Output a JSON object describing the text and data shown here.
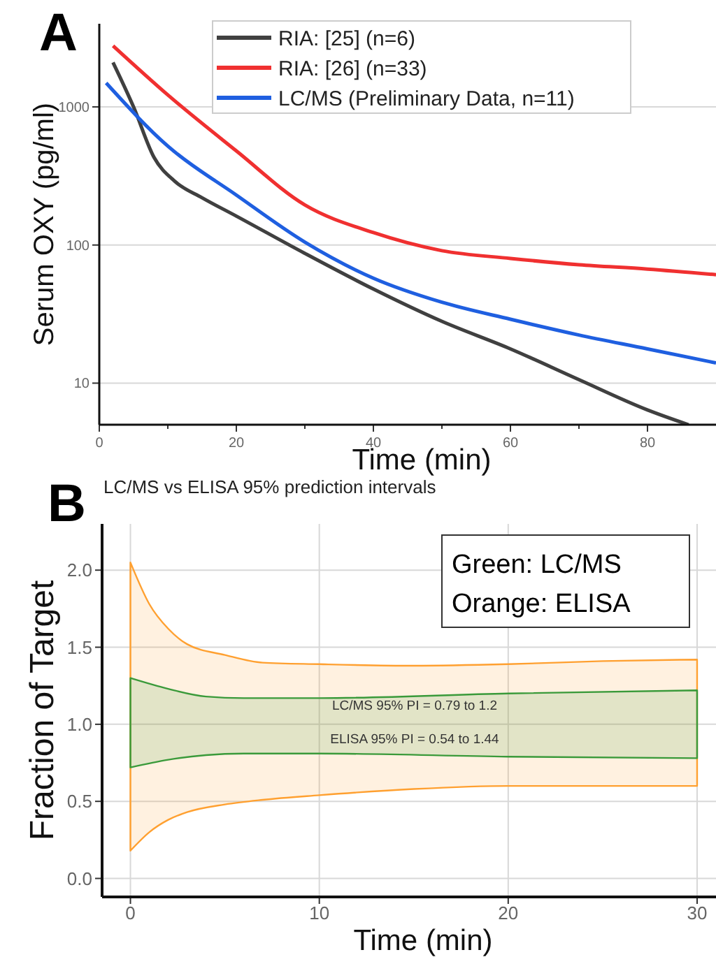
{
  "chart_data": [
    {
      "type": "line",
      "xlabel": "Time (min)",
      "ylabel": "Serum OXY (pg/ml)",
      "annotations": [
        "A"
      ],
      "log": "y",
      "grid": "y",
      "legend": "top right",
      "xlim": [
        0,
        90
      ],
      "ylim": [
        5,
        4000
      ],
      "xticks": [
        0,
        {
          "value": 10,
          "label": null
        },
        20,
        {
          "value": 30,
          "label": null
        },
        40,
        {
          "value": 50,
          "label": null
        },
        60,
        {
          "value": 70,
          "label": null
        },
        80
      ],
      "yticks": [
        10,
        100,
        1000
      ],
      "series": [
        {
          "name": "RIA: [25] (n=6)",
          "color": "#404040",
          "x": [
            2,
            5,
            8,
            11,
            15,
            20,
            30,
            40,
            50,
            60,
            70,
            80,
            86
          ],
          "values": [
            2100,
            1000,
            430,
            290,
            220,
            162,
            87,
            48,
            28,
            17.7,
            10.6,
            6.4,
            5
          ]
        },
        {
          "name": "RIA: [26] (n=33)",
          "color": "#f03030",
          "x": [
            2,
            10,
            20,
            30,
            40,
            50,
            60,
            70,
            80,
            90
          ],
          "values": [
            2770,
            1220,
            480,
            195,
            123,
            91,
            80,
            72,
            67,
            61
          ]
        },
        {
          "name": "LC/MS (Preliminary Data, n=11)",
          "color": "#1f5fe0",
          "x": [
            1,
            10,
            20,
            30,
            40,
            50,
            60,
            70,
            80,
            90
          ],
          "values": [
            1490,
            520,
            230,
            105,
            57.5,
            38.5,
            29,
            22.3,
            17.7,
            14
          ]
        }
      ]
    },
    {
      "type": "area",
      "title": "LC/MS vs ELISA 95% prediction intervals",
      "xlabel": "Time (min)",
      "ylabel": "Fraction of Target",
      "grid": true,
      "xlim": [
        -1.5,
        31
      ],
      "ylim": [
        -0.12,
        2.3
      ],
      "xticks": [
        0,
        10,
        20,
        30
      ],
      "yticks": [
        {
          "value": 0,
          "label": "0.0"
        },
        {
          "value": 0.5,
          "label": "0.5"
        },
        {
          "value": 1,
          "label": "1.0"
        },
        {
          "value": 1.5,
          "label": "1.5"
        },
        {
          "value": 2,
          "label": "2.0"
        }
      ],
      "annotations": [
        "B",
        "Green: LC/MS\nOrange: ELISA",
        "LC/MS 95% PI = 0.79 to 1.2",
        "ELISA 95% PI = 0.54 to 1.44"
      ],
      "series": [
        {
          "color": "#ffa030",
          "x": [
            0,
            1,
            2,
            3,
            5,
            7,
            10,
            15,
            20,
            25,
            30
          ],
          "values": [
            null,
            null,
            null,
            null,
            null,
            null,
            null,
            null,
            null,
            null,
            null
          ],
          "upper": [
            2.05,
            1.78,
            1.62,
            1.52,
            1.45,
            1.4,
            1.39,
            1.38,
            1.39,
            1.41,
            1.42
          ],
          "lower": [
            0.18,
            0.3,
            0.38,
            0.43,
            0.48,
            0.51,
            0.54,
            0.58,
            0.6,
            0.6,
            0.6
          ]
        },
        {
          "color": "#3a9a3a",
          "x": [
            0,
            2,
            4,
            6,
            10,
            20,
            30
          ],
          "values": [
            null,
            null,
            null,
            null,
            null,
            null,
            null
          ],
          "upper": [
            1.3,
            1.23,
            1.18,
            1.17,
            1.17,
            1.2,
            1.22
          ],
          "lower": [
            0.72,
            0.77,
            0.8,
            0.81,
            0.81,
            0.79,
            0.78
          ]
        }
      ]
    }
  ]
}
